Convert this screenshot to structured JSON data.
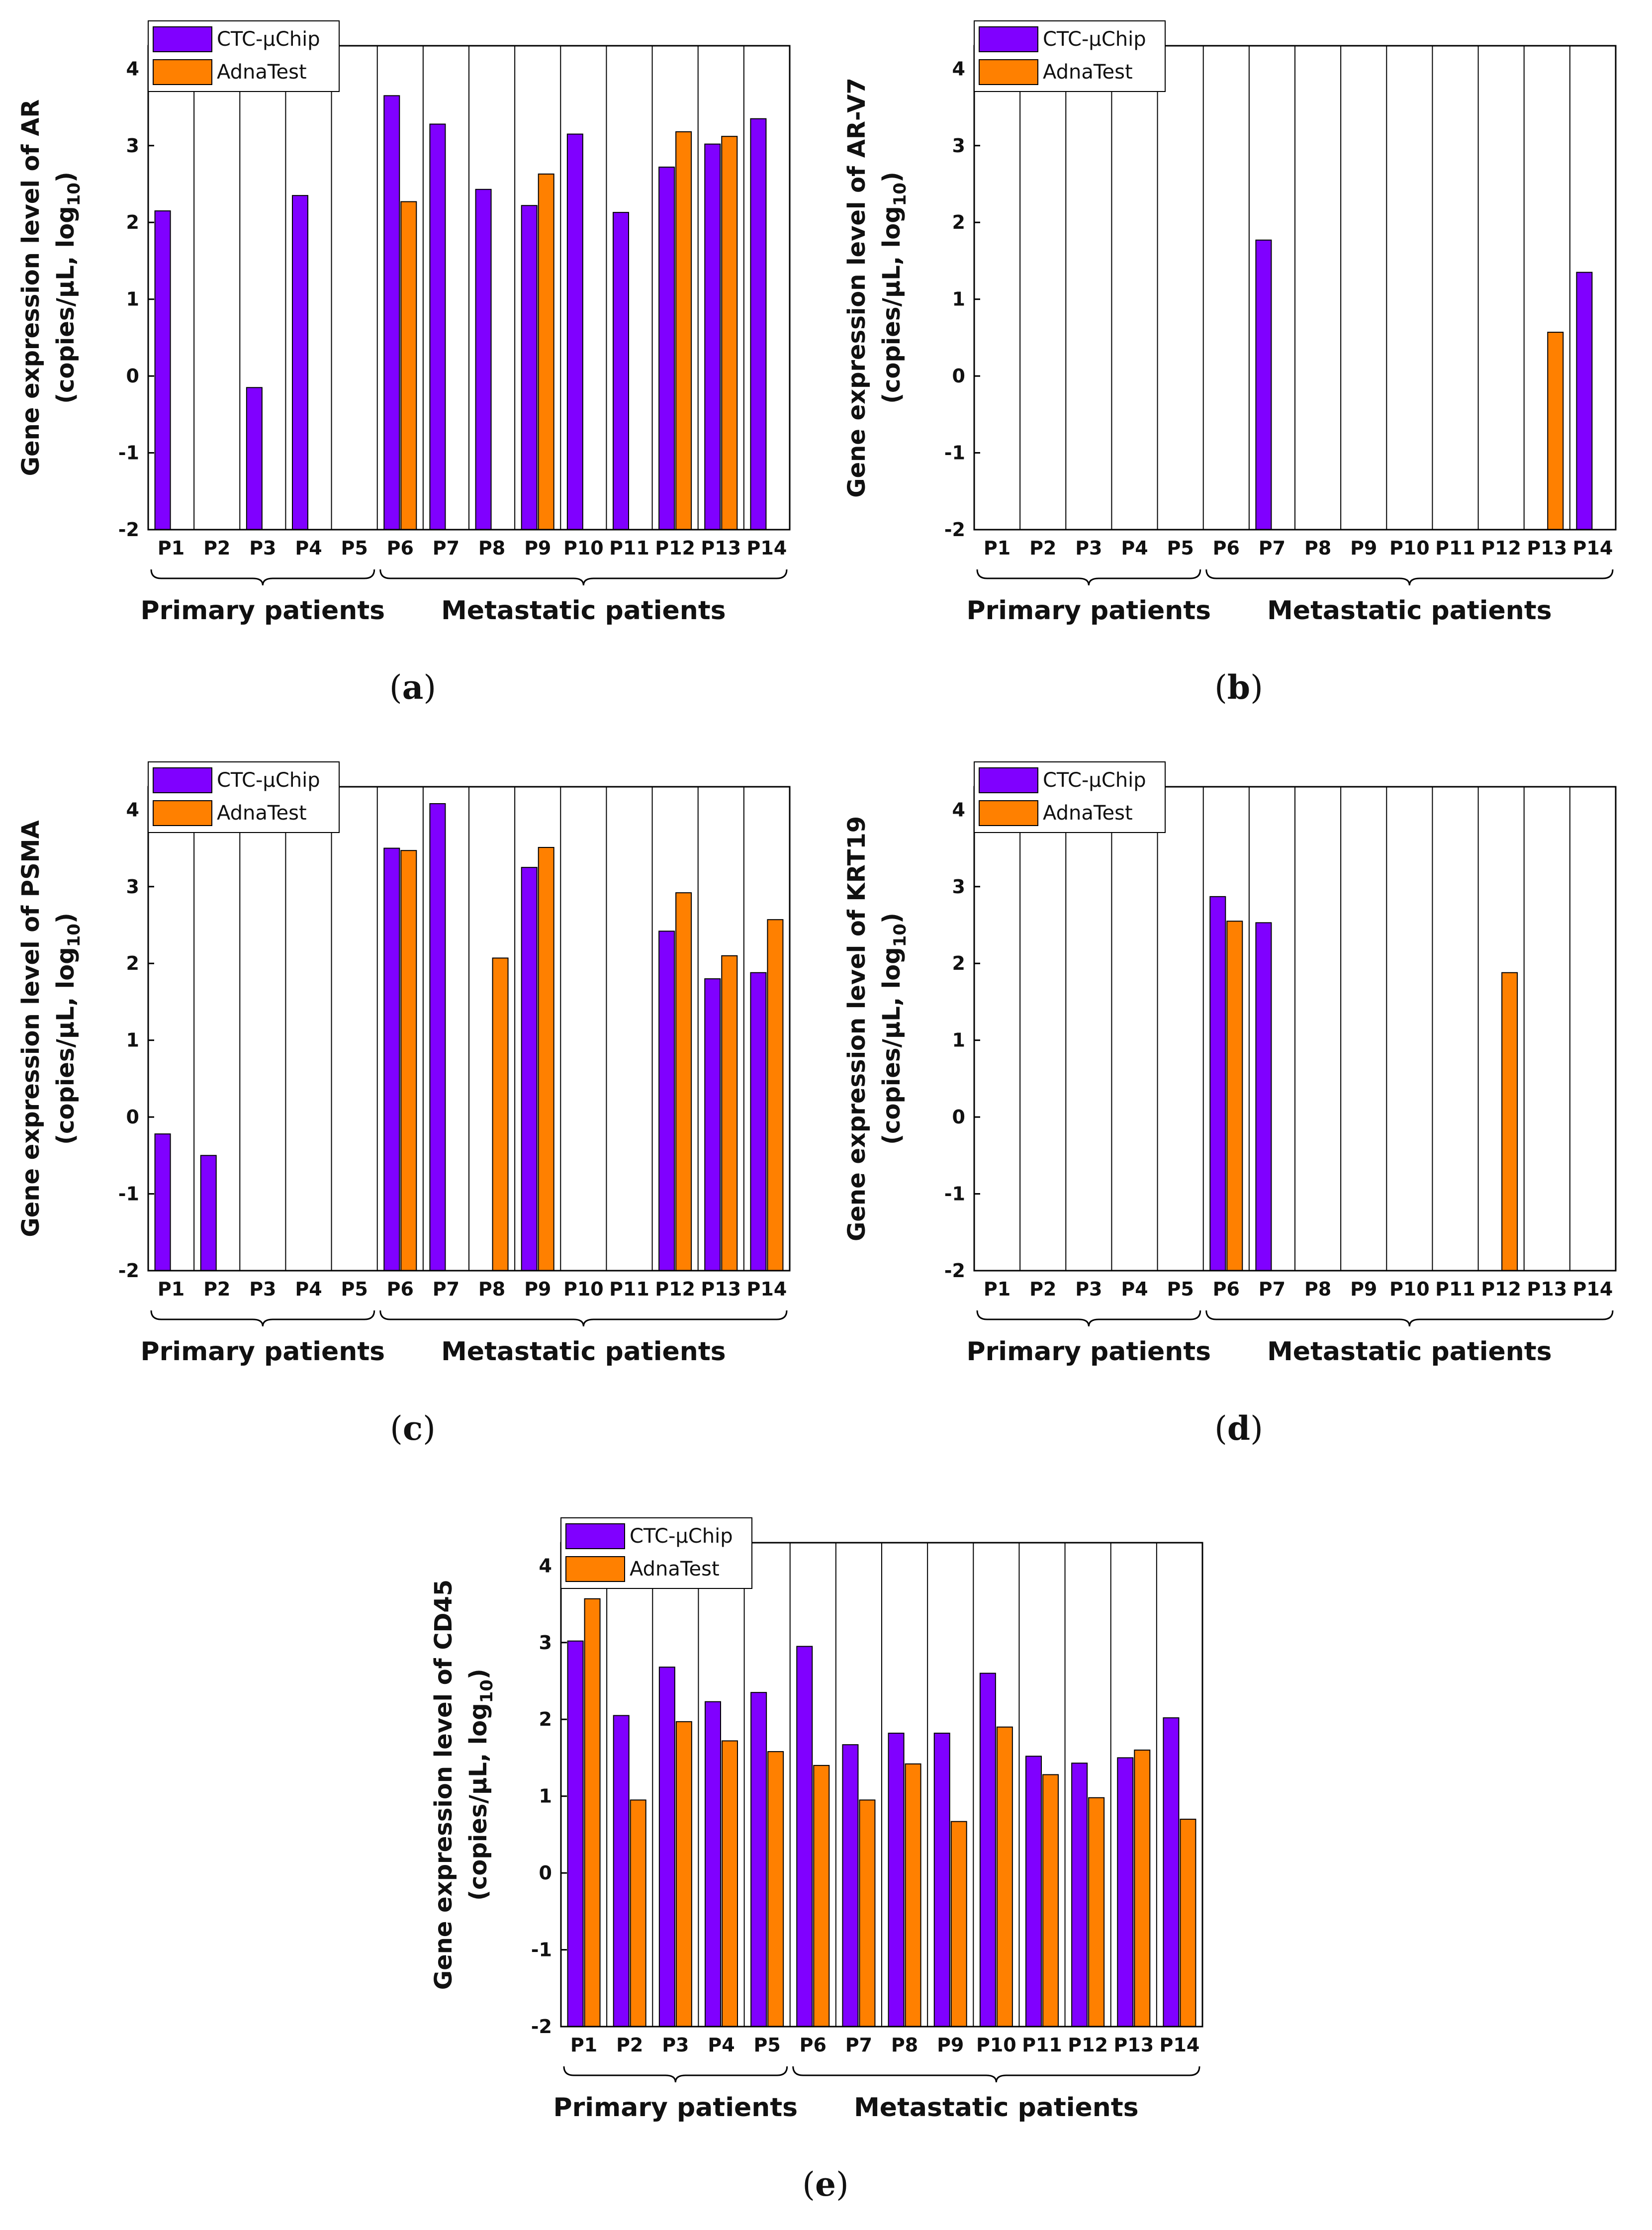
{
  "colors": {
    "ctc": "#8000ff",
    "adna": "#ff8000",
    "axis": "#000000",
    "background": "#ffffff"
  },
  "legend": {
    "ctc_label": "CTC-µChip",
    "adna_label": "AdnaTest"
  },
  "groups": {
    "primary_label": "Primary patients",
    "metastatic_label": "Metastatic patients"
  },
  "chart_data": [
    {
      "id": "a",
      "type": "bar",
      "caption_label": "a",
      "ylabel_line1": "Gene expression level of AR",
      "ylabel_line2_prefix": "(copies/µL, log",
      "ylabel_line2_sub": "10",
      "ylabel_line2_suffix": ")",
      "ylim": [
        -2,
        4.3
      ],
      "yticks": [
        -2,
        -1,
        0,
        1,
        2,
        3,
        4
      ],
      "categories": [
        "P1",
        "P2",
        "P3",
        "P4",
        "P5",
        "P6",
        "P7",
        "P8",
        "P9",
        "P10",
        "P11",
        "P12",
        "P13",
        "P14"
      ],
      "series": [
        {
          "name": "CTC-µChip",
          "values": [
            2.15,
            null,
            -0.15,
            2.35,
            null,
            3.65,
            3.28,
            2.43,
            2.22,
            3.15,
            2.13,
            2.72,
            3.02,
            3.35
          ]
        },
        {
          "name": "AdnaTest",
          "values": [
            null,
            null,
            null,
            null,
            null,
            2.27,
            null,
            null,
            2.63,
            null,
            null,
            3.18,
            3.12,
            null
          ]
        }
      ]
    },
    {
      "id": "b",
      "type": "bar",
      "caption_label": "b",
      "ylabel_line1": "Gene expression level of AR-V7",
      "ylabel_line2_prefix": "(copies/µL, log",
      "ylabel_line2_sub": "10",
      "ylabel_line2_suffix": ")",
      "ylim": [
        -2,
        4.3
      ],
      "yticks": [
        -2,
        -1,
        0,
        1,
        2,
        3,
        4
      ],
      "categories": [
        "P1",
        "P2",
        "P3",
        "P4",
        "P5",
        "P6",
        "P7",
        "P8",
        "P9",
        "P10",
        "P11",
        "P12",
        "P13",
        "P14"
      ],
      "series": [
        {
          "name": "CTC-µChip",
          "values": [
            null,
            null,
            null,
            null,
            null,
            null,
            1.77,
            null,
            null,
            null,
            null,
            null,
            null,
            1.35
          ]
        },
        {
          "name": "AdnaTest",
          "values": [
            null,
            null,
            null,
            null,
            null,
            null,
            null,
            null,
            null,
            null,
            null,
            null,
            0.57,
            null
          ]
        }
      ]
    },
    {
      "id": "c",
      "type": "bar",
      "caption_label": "c",
      "ylabel_line1": "Gene expression level of PSMA",
      "ylabel_line2_prefix": "(copies/µL, log",
      "ylabel_line2_sub": "10",
      "ylabel_line2_suffix": ")",
      "ylim": [
        -2,
        4.3
      ],
      "yticks": [
        -2,
        -1,
        0,
        1,
        2,
        3,
        4
      ],
      "categories": [
        "P1",
        "P2",
        "P3",
        "P4",
        "P5",
        "P6",
        "P7",
        "P8",
        "P9",
        "P10",
        "P11",
        "P12",
        "P13",
        "P14"
      ],
      "series": [
        {
          "name": "CTC-µChip",
          "values": [
            -0.22,
            -0.5,
            null,
            null,
            null,
            3.5,
            4.08,
            null,
            3.25,
            null,
            null,
            2.42,
            1.8,
            1.88
          ]
        },
        {
          "name": "AdnaTest",
          "values": [
            null,
            null,
            null,
            null,
            null,
            3.47,
            null,
            2.07,
            3.51,
            null,
            null,
            2.92,
            2.1,
            2.57
          ]
        }
      ]
    },
    {
      "id": "d",
      "type": "bar",
      "caption_label": "d",
      "ylabel_line1": "Gene expression level of KRT19",
      "ylabel_line2_prefix": "(copies/µL, log",
      "ylabel_line2_sub": "10",
      "ylabel_line2_suffix": ")",
      "ylim": [
        -2,
        4.3
      ],
      "yticks": [
        -2,
        -1,
        0,
        1,
        2,
        3,
        4
      ],
      "categories": [
        "P1",
        "P2",
        "P3",
        "P4",
        "P5",
        "P6",
        "P7",
        "P8",
        "P9",
        "P10",
        "P11",
        "P12",
        "P13",
        "P14"
      ],
      "series": [
        {
          "name": "CTC-µChip",
          "values": [
            null,
            null,
            null,
            null,
            null,
            2.87,
            2.53,
            null,
            null,
            null,
            null,
            null,
            null,
            null
          ]
        },
        {
          "name": "AdnaTest",
          "values": [
            null,
            null,
            null,
            null,
            null,
            2.55,
            null,
            null,
            null,
            null,
            null,
            1.88,
            null,
            null
          ]
        }
      ]
    },
    {
      "id": "e",
      "type": "bar",
      "caption_label": "e",
      "ylabel_line1": "Gene expression level of CD45",
      "ylabel_line2_prefix": "(copies/µL, log",
      "ylabel_line2_sub": "10",
      "ylabel_line2_suffix": ")",
      "ylim": [
        -2,
        4.3
      ],
      "yticks": [
        -2,
        -1,
        0,
        1,
        2,
        3,
        4
      ],
      "categories": [
        "P1",
        "P2",
        "P3",
        "P4",
        "P5",
        "P6",
        "P7",
        "P8",
        "P9",
        "P10",
        "P11",
        "P12",
        "P13",
        "P14"
      ],
      "series": [
        {
          "name": "CTC-µChip",
          "values": [
            3.02,
            2.05,
            2.68,
            2.23,
            2.35,
            2.95,
            1.67,
            1.82,
            1.82,
            2.6,
            1.52,
            1.43,
            1.5,
            2.02
          ]
        },
        {
          "name": "AdnaTest",
          "values": [
            3.57,
            0.95,
            1.97,
            1.72,
            1.58,
            1.4,
            0.95,
            1.42,
            0.67,
            1.9,
            1.28,
            0.98,
            1.6,
            0.7
          ]
        }
      ]
    }
  ]
}
